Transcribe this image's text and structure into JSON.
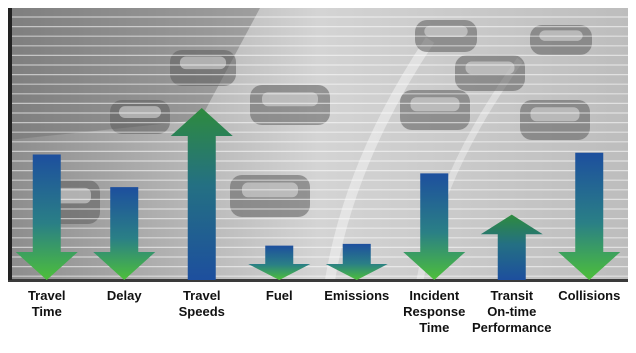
{
  "chart_data": {
    "type": "bar",
    "orientation": "vertical-arrows",
    "background": "grayscale photo of highway traffic with horizontal grid lines",
    "grid": true,
    "legend": "none",
    "ylim": [
      0,
      1
    ],
    "categories": [
      {
        "label_lines": [
          "Travel",
          "Time"
        ],
        "direction": "down",
        "magnitude": 0.73
      },
      {
        "label_lines": [
          "Delay"
        ],
        "direction": "down",
        "magnitude": 0.54
      },
      {
        "label_lines": [
          "Travel",
          "Speeds"
        ],
        "direction": "up",
        "magnitude": 1.0
      },
      {
        "label_lines": [
          "Fuel"
        ],
        "direction": "down",
        "magnitude": 0.2
      },
      {
        "label_lines": [
          "Emissions"
        ],
        "direction": "down",
        "magnitude": 0.21
      },
      {
        "label_lines": [
          "Incident",
          "Response",
          "Time"
        ],
        "direction": "down",
        "magnitude": 0.62
      },
      {
        "label_lines": [
          "Transit",
          "On-time",
          "Performance"
        ],
        "direction": "up",
        "magnitude": 0.38
      },
      {
        "label_lines": [
          "Collisions"
        ],
        "direction": "down",
        "magnitude": 0.74
      }
    ],
    "colors": {
      "arrow_blue": "#1d4f9e",
      "arrow_green": "#4dbf3a",
      "up_arrow_head": "#2e8b3e"
    }
  }
}
